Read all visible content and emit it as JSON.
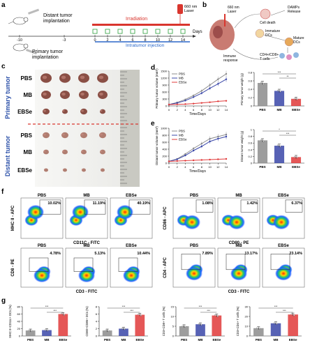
{
  "panel_labels": {
    "a": "a",
    "b": "b",
    "c": "c",
    "d": "d",
    "e": "e",
    "f": "f",
    "g": "g"
  },
  "panel_a": {
    "laser": "660 nm\nLaser",
    "distant": "Distant tumor\nimplantation",
    "primary": "Primary tumor\nimplantation",
    "irradiation": "Irradiation",
    "injection": "Intratumor injection",
    "days_label": "Days",
    "ticks": [
      "-10",
      "-3",
      "0",
      "2",
      "4",
      "6",
      "8",
      "10",
      "12",
      "14"
    ]
  },
  "panel_b": {
    "laser": "660 nm\nLaser",
    "cell_death": "Cell death",
    "damps": "DAMPs\nRelease",
    "immature": "Immature\nDCs",
    "mature": "Mature\nDCs",
    "immune": "Immune\nresponse",
    "tcells": "CD4+/CD8+\nT cells"
  },
  "panel_c": {
    "rows": [
      "PBS",
      "MB",
      "EBSe",
      "PBS",
      "MB",
      "EBSe"
    ],
    "primary": "Primary tumor",
    "distant": "Distant tumor"
  },
  "colors": {
    "pbs": "#8c8c8c",
    "mb": "#3a47a8",
    "ebse": "#e03a3a"
  },
  "chart_data": [
    {
      "type": "line",
      "panel": "d",
      "x": [
        0,
        2,
        4,
        6,
        8,
        10,
        12,
        14
      ],
      "xlabel": "Time/Days",
      "ylabel": "Primary tumor volume (mm³)",
      "ylim": [
        0,
        1500
      ],
      "yticks": [
        0,
        300,
        600,
        900,
        1200,
        1500
      ],
      "series": [
        {
          "name": "PBS",
          "values": [
            60,
            150,
            280,
            450,
            650,
            900,
            1150,
            1380
          ]
        },
        {
          "name": "MB",
          "values": [
            60,
            130,
            230,
            380,
            550,
            760,
            950,
            1150
          ]
        },
        {
          "name": "EBSe",
          "values": [
            60,
            70,
            80,
            100,
            130,
            160,
            200,
            220
          ]
        }
      ]
    },
    {
      "type": "bar",
      "panel": "d",
      "categories": [
        "PBS",
        "MB",
        "EBSe"
      ],
      "values": [
        0.55,
        0.36,
        0.17
      ],
      "ylabel": "Primary tumor weight (g)",
      "ylim": [
        0,
        0.8
      ],
      "yticks": [
        0.0,
        0.2,
        0.4,
        0.6,
        0.8
      ]
    },
    {
      "type": "line",
      "panel": "e",
      "x": [
        0,
        2,
        4,
        6,
        8,
        10,
        12,
        14
      ],
      "xlabel": "Time/Days",
      "ylabel": "Distant tumor volume (mm³)",
      "ylim": [
        0,
        1000
      ],
      "yticks": [
        0,
        200,
        400,
        600,
        800,
        1000
      ],
      "series": [
        {
          "name": "PBS",
          "values": [
            50,
            120,
            260,
            420,
            560,
            700,
            760,
            820
          ]
        },
        {
          "name": "MB",
          "values": [
            50,
            110,
            220,
            360,
            480,
            620,
            700,
            760
          ]
        },
        {
          "name": "EBSe",
          "values": [
            50,
            60,
            70,
            80,
            90,
            100,
            110,
            120
          ]
        }
      ]
    },
    {
      "type": "bar",
      "panel": "e",
      "categories": [
        "PBS",
        "MB",
        "EBSe"
      ],
      "values": [
        0.68,
        0.52,
        0.18
      ],
      "ylabel": "Distant tumor weight (g)",
      "ylim": [
        0,
        1.0
      ],
      "yticks": [
        0.0,
        0.2,
        0.4,
        0.6,
        0.8,
        1.0
      ]
    },
    {
      "type": "bar",
      "panel": "g",
      "categories": [
        "PBS",
        "MB",
        "EBSe"
      ],
      "values": [
        15,
        16,
        60
      ],
      "ylabel": "MHC II+CD11c+ DCs (%)",
      "ylim": [
        0,
        80
      ],
      "yticks": [
        0,
        20,
        40,
        60,
        80
      ]
    },
    {
      "type": "bar",
      "panel": "g",
      "categories": [
        "PBS",
        "MB",
        "EBSe"
      ],
      "values": [
        1.5,
        2.0,
        5.8
      ],
      "ylabel": "CD80+CD86+ DCs (%)",
      "ylim": [
        0,
        8
      ],
      "yticks": [
        0,
        2,
        4,
        6,
        8
      ]
    },
    {
      "type": "bar",
      "panel": "g",
      "categories": [
        "PBS",
        "MB",
        "EBSe"
      ],
      "values": [
        5,
        6,
        10.5
      ],
      "ylabel": "CD3+CD8+ T cells (%)",
      "ylim": [
        0,
        15
      ],
      "yticks": [
        0,
        5,
        10,
        15
      ]
    },
    {
      "type": "bar",
      "panel": "g",
      "categories": [
        "PBS",
        "MB",
        "EBSe"
      ],
      "values": [
        8,
        13,
        22
      ],
      "ylabel": "CD3+CD4+ T cells (%)",
      "ylim": [
        0,
        30
      ],
      "yticks": [
        0,
        10,
        20,
        30
      ]
    }
  ],
  "panel_f": {
    "row1_left": {
      "groups": [
        "PBS",
        "MB",
        "EBSe"
      ],
      "pcts": [
        "10.02%",
        "11.19%",
        "40.19%"
      ],
      "ylabel": "MHC II - APC",
      "xlabel": "CD11C - FITC"
    },
    "row1_right": {
      "groups": [
        "PBS",
        "MB",
        "EBSe"
      ],
      "pcts": [
        "1.08%",
        "1.42%",
        "6.37%"
      ],
      "ylabel": "CD86 - APC",
      "xlabel": "CD80 - PE"
    },
    "row2_left": {
      "groups": [
        "PBS",
        "MB",
        "EBSe"
      ],
      "pcts": [
        "4.78%",
        "5.13%",
        "10.44%"
      ],
      "ylabel": "CD8 - PE",
      "xlabel": "CD3 - FITC"
    },
    "row2_right": {
      "groups": [
        "PBS",
        "MB",
        "EBSe"
      ],
      "pcts": [
        "7.89%",
        "13.17%",
        "23.14%"
      ],
      "ylabel": "CD4 - APC",
      "xlabel": "CD3 - FITC"
    }
  },
  "sig": {
    "s3": "***",
    "s2": "**",
    "s1": "*"
  }
}
